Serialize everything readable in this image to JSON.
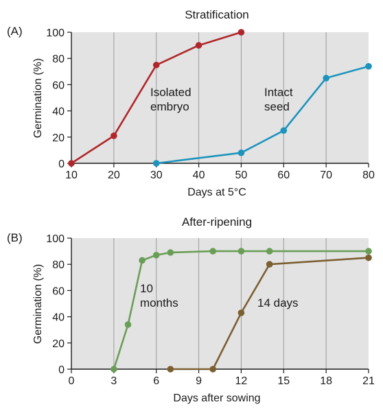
{
  "chart_data": [
    {
      "panel_label": "(A)",
      "type": "line",
      "title": "Stratification",
      "xlabel": "Days at 5°C",
      "ylabel": "Germination (%)",
      "xlim": [
        10,
        80
      ],
      "ylim": [
        0,
        100
      ],
      "xticks": [
        10,
        20,
        30,
        40,
        50,
        60,
        70,
        80
      ],
      "yticks": [
        0,
        20,
        40,
        60,
        80,
        100
      ],
      "grid": "vertical",
      "background": "#e3e3e3",
      "series": [
        {
          "name": "Isolated embryo",
          "color": "#b0272b",
          "x": [
            10,
            20,
            30,
            40,
            50
          ],
          "y": [
            0,
            21,
            75,
            90,
            100
          ]
        },
        {
          "name": "Intact seed",
          "color": "#1c94bd",
          "x": [
            30,
            50,
            60,
            70,
            80
          ],
          "y": [
            0,
            8,
            25,
            65,
            74
          ]
        }
      ],
      "annotations": [
        {
          "lines": [
            "Isolated",
            "embryo"
          ]
        },
        {
          "lines": [
            "Intact",
            "seed"
          ]
        }
      ]
    },
    {
      "panel_label": "(B)",
      "type": "line",
      "title": "After-ripening",
      "xlabel": "Days after sowing",
      "ylabel": "Germination (%)",
      "xlim": [
        0,
        21
      ],
      "ylim": [
        0,
        100
      ],
      "xticks": [
        0,
        3,
        6,
        9,
        12,
        15,
        18,
        21
      ],
      "yticks": [
        0,
        20,
        40,
        60,
        80,
        100
      ],
      "grid": "vertical",
      "background": "#e3e3e3",
      "series": [
        {
          "name": "10 months",
          "color": "#6a9e57",
          "x": [
            3,
            4,
            5,
            6,
            7,
            10,
            12,
            14,
            21
          ],
          "y": [
            0,
            34,
            83,
            87,
            89,
            90,
            90,
            90,
            90
          ]
        },
        {
          "name": "14 days",
          "color": "#7b5f31",
          "x": [
            7,
            10,
            12,
            14,
            21
          ],
          "y": [
            0,
            0,
            43,
            80,
            85
          ]
        }
      ],
      "annotations": [
        {
          "lines": [
            "10",
            "months"
          ]
        },
        {
          "lines": [
            "14 days"
          ]
        }
      ]
    }
  ]
}
